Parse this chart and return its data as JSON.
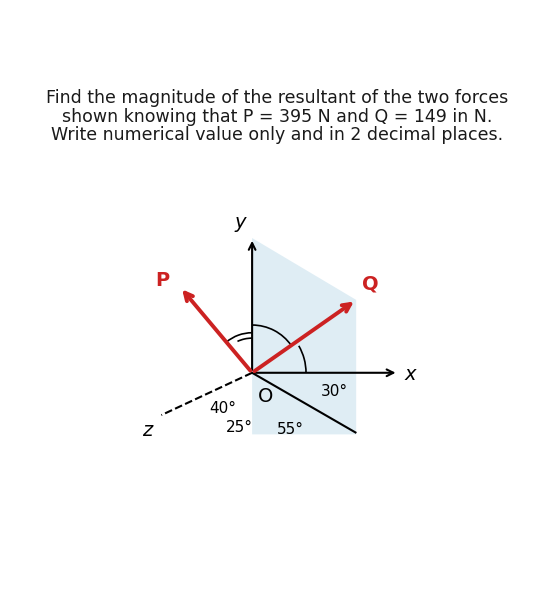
{
  "title_line1": "Find the magnitude of the resultant of the two forces",
  "title_line2": "shown knowing that P = 395 N and Q = 149 in N.",
  "title_line3": "Write numerical value only and in 2 decimal places.",
  "P": 395,
  "Q": 149,
  "force_color": "#cc2222",
  "panel_color": "#b8d8e8",
  "panel_alpha": 0.45,
  "bg_color": "#ffffff",
  "text_color": "#1a1a1a",
  "fontsize_title": 12.5,
  "fontsize_labels": 13,
  "fontsize_angles": 11
}
